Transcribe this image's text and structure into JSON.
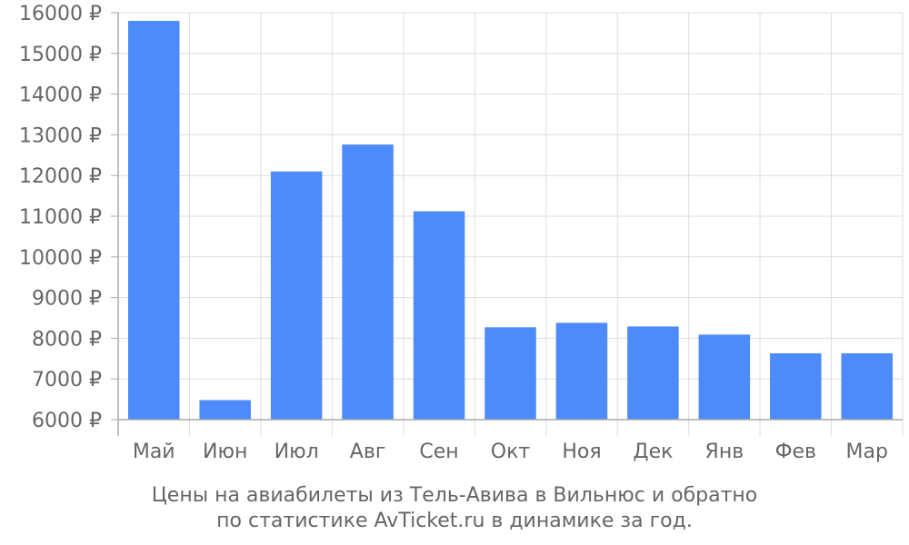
{
  "chart_data": {
    "type": "bar",
    "categories": [
      "Май",
      "Июн",
      "Июл",
      "Авг",
      "Сен",
      "Окт",
      "Ноя",
      "Дек",
      "Янв",
      "Фев",
      "Мар"
    ],
    "values": [
      15800,
      6480,
      12100,
      12760,
      11120,
      8270,
      8380,
      8290,
      8090,
      7630,
      7630
    ],
    "ylim": [
      6000,
      16000
    ],
    "yticks": [
      6000,
      7000,
      8000,
      9000,
      10000,
      11000,
      12000,
      13000,
      14000,
      15000,
      16000
    ],
    "currency_suffix": " ₽",
    "grid": true,
    "bar_color": "#4d8afa",
    "grid_color": "#dddddd",
    "axis_color": "#aaaaaa",
    "text_color": "#666666"
  },
  "caption": {
    "line1": "Цены на авиабилеты из Тель-Авива в Вильнюс и обратно",
    "line2": "по статистике AvTicket.ru в динамике за год."
  }
}
